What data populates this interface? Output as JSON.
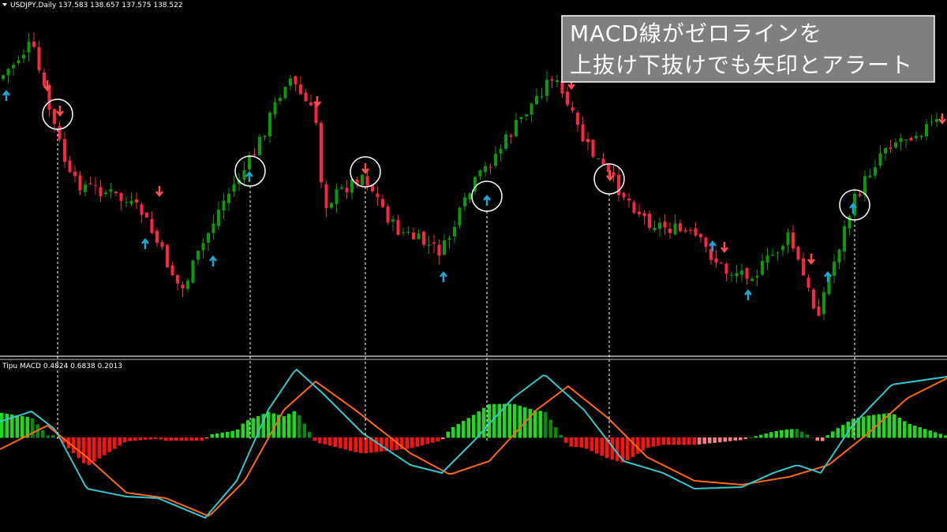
{
  "header": {
    "symbol_info": "USDJPY,Daily  137.583 138.657 137.575 138.522"
  },
  "indicator": {
    "label": "Tipu MACD 0.4824 0.6838 0.2013"
  },
  "annotation": {
    "lines": [
      "MACD線がゼロラインを",
      "上抜け下抜けでも矢印とアラート"
    ]
  }
}
